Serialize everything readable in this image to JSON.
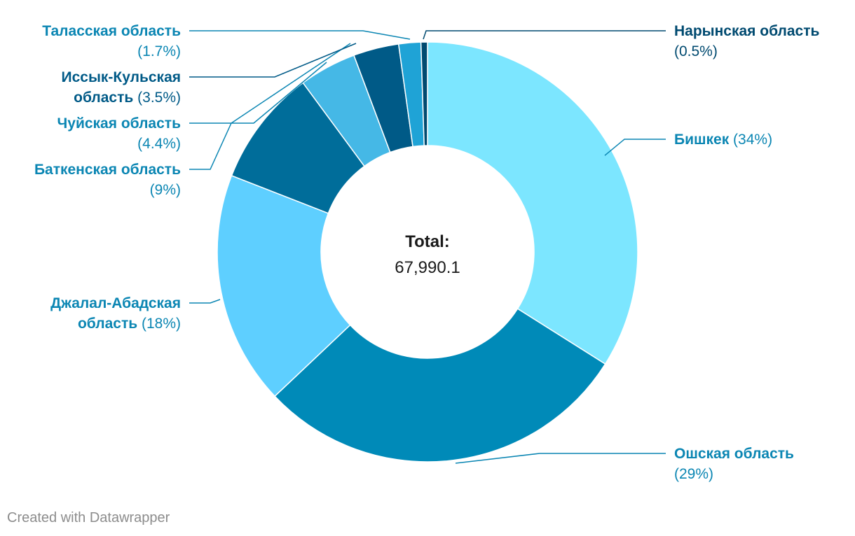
{
  "chart_data": {
    "type": "pie",
    "subtype": "donut",
    "center_label": {
      "title": "Total:",
      "value": "67,990.1"
    },
    "slices": [
      {
        "name": "Бишкек",
        "value": 34,
        "value_label": "(34%)",
        "color": "#7ce6ff",
        "label_color": "#0b86b3",
        "label_lines": [
          "Бишкек (34%)"
        ]
      },
      {
        "name": "Ошская область",
        "value": 29,
        "value_label": "(29%)",
        "color": "#008ab8",
        "label_color": "#0b86b3",
        "label_lines": [
          "Ошская область",
          "(29%)"
        ]
      },
      {
        "name": "Джалал-Абадская область",
        "value": 18,
        "value_label": "(18%)",
        "color": "#5ecfff",
        "label_color": "#0b86b3",
        "label_lines": [
          "Джалал-Абадская",
          "область (18%)"
        ]
      },
      {
        "name": "Баткенская область",
        "value": 9,
        "value_label": "(9%)",
        "color": "#006d9a",
        "label_color": "#0b86b3",
        "label_lines": [
          "Баткенская область",
          "(9%)"
        ]
      },
      {
        "name": "Чуйская область",
        "value": 4.4,
        "value_label": "(4.4%)",
        "color": "#45b8e6",
        "label_color": "#0b86b3",
        "label_lines": [
          "Чуйская область",
          "(4.4%)"
        ]
      },
      {
        "name": "Иссык-Кульская область",
        "value": 3.5,
        "value_label": "(3.5%)",
        "color": "#005a87",
        "label_color": "#005a87",
        "label_lines": [
          "Иссык-Кульская",
          "область (3.5%)"
        ]
      },
      {
        "name": "Таласская область",
        "value": 1.7,
        "value_label": "(1.7%)",
        "color": "#1fa3d6",
        "label_color": "#0b86b3",
        "label_lines": [
          "Таласская область",
          "(1.7%)"
        ]
      },
      {
        "name": "Нарынская область",
        "value": 0.5,
        "value_label": "(0.5%)",
        "color": "#004a70",
        "label_color": "#004a70",
        "label_lines": [
          "Нарынская область",
          "(0.5%)"
        ]
      }
    ]
  },
  "footer": {
    "credit": "Created with Datawrapper"
  }
}
